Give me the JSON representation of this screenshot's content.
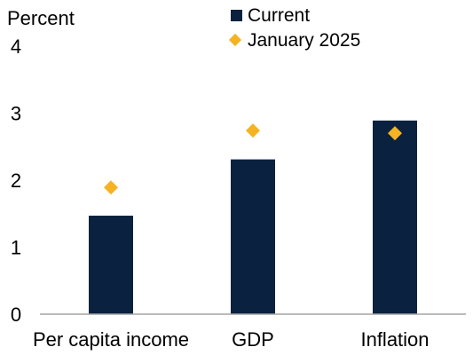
{
  "chart_data": {
    "type": "bar",
    "ylabel": "Percent",
    "categories": [
      "Per capita income",
      "GDP",
      "Inflation"
    ],
    "series": [
      {
        "name": "Current",
        "kind": "bar",
        "values": [
          1.47,
          2.31,
          2.89
        ]
      },
      {
        "name": "January 2025",
        "kind": "marker",
        "values": [
          1.89,
          2.74,
          2.7
        ]
      }
    ],
    "ylim": [
      0,
      4
    ],
    "yticks": [
      0,
      1,
      2,
      3,
      4
    ],
    "grid": false,
    "legend_placement": "top-center"
  },
  "colors": {
    "bar": "#0a2240",
    "marker": "#f5b323",
    "axis": "#a6a6a6"
  }
}
